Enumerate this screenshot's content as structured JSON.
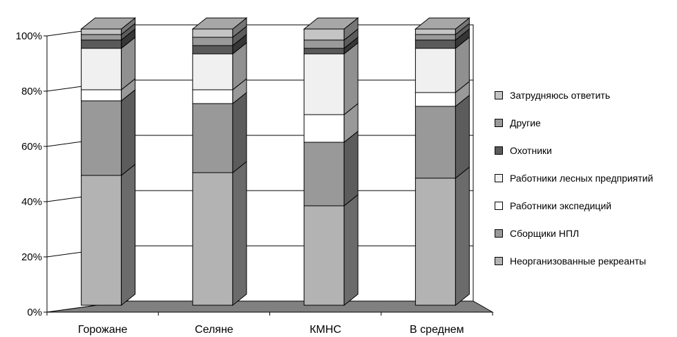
{
  "chart_data": {
    "type": "bar",
    "stacked": true,
    "three_d": true,
    "categories": [
      "Горожане",
      "Селяне",
      "КМНС",
      "В среднем"
    ],
    "y_ticks": [
      "0%",
      "20%",
      "40%",
      "60%",
      "80%",
      "100%"
    ],
    "ylim": [
      0,
      100
    ],
    "grid": true,
    "legend_position": "right",
    "series": [
      {
        "name": "Неорганизованные рекреанты",
        "color": "#b3b3b3",
        "values": [
          47,
          48,
          36,
          46
        ]
      },
      {
        "name": "Сборщики НПЛ",
        "color": "#999999",
        "values": [
          27,
          25,
          23,
          26
        ]
      },
      {
        "name": "Работники экспедиций",
        "color": "#ffffff",
        "values": [
          4,
          5,
          10,
          5
        ]
      },
      {
        "name": "Работники лесных предприятий",
        "color": "#f0f0f0",
        "values": [
          15,
          13,
          22,
          16
        ]
      },
      {
        "name": "Охотники",
        "color": "#5a5a5a",
        "values": [
          3,
          3,
          2,
          3
        ]
      },
      {
        "name": "Другие",
        "color": "#9a9a9a",
        "values": [
          2,
          3,
          3,
          2
        ]
      },
      {
        "name": "Затрудняюсь ответить",
        "color": "#c4c4c4",
        "values": [
          2,
          3,
          4,
          2
        ]
      }
    ]
  }
}
